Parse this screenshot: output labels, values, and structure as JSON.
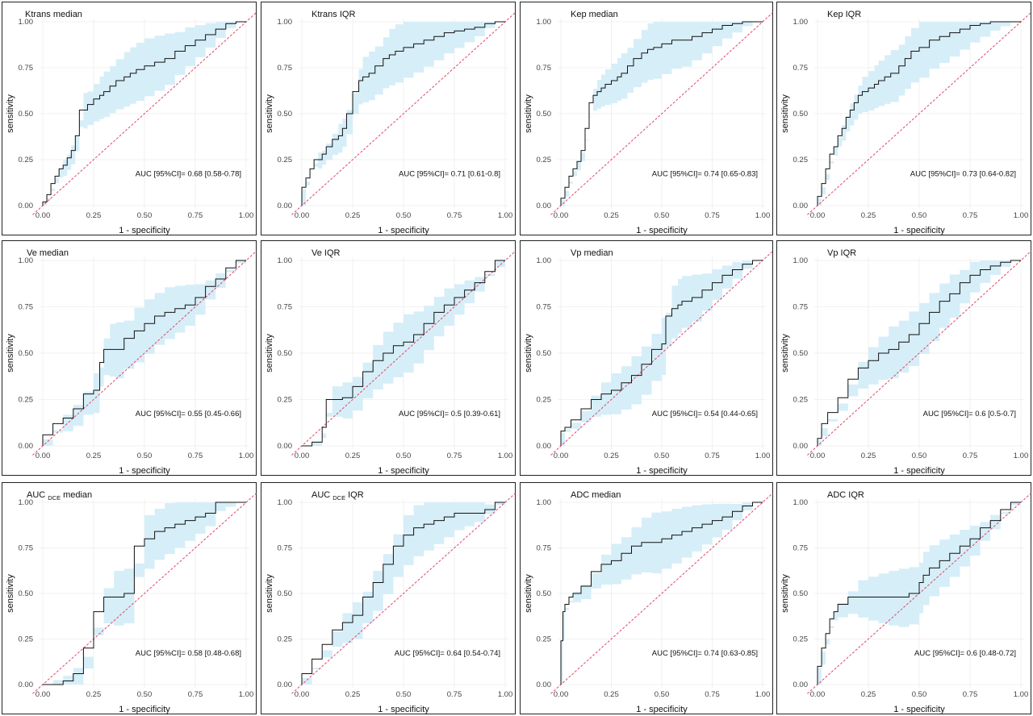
{
  "colors": {
    "ci_band": "#d6eef8",
    "roc_line": "#111111",
    "diagonal": "#e2466a",
    "grid": "#ececec"
  },
  "chart_data": [
    {
      "type": "line",
      "title": "Ktrans median",
      "title_sub": "",
      "xlabel": "1 - specificity",
      "ylabel": "sensitivity",
      "xlim": [
        0,
        1
      ],
      "ylim": [
        0,
        1
      ],
      "xticks": [
        "0.00",
        "0.25",
        "0.50",
        "0.75",
        "1.00"
      ],
      "yticks": [
        "0.00",
        "0.25",
        "0.50",
        "0.75",
        "1.00"
      ],
      "annotation": "AUC [95%CI]= 0.68 [0.58-0.78]",
      "x": [
        0,
        0.02,
        0.04,
        0.06,
        0.08,
        0.1,
        0.12,
        0.14,
        0.16,
        0.18,
        0.2,
        0.22,
        0.25,
        0.28,
        0.3,
        0.33,
        0.36,
        0.4,
        0.43,
        0.46,
        0.5,
        0.55,
        0.6,
        0.65,
        0.7,
        0.75,
        0.8,
        0.85,
        0.9,
        0.95,
        1
      ],
      "y": [
        0,
        0.02,
        0.06,
        0.12,
        0.16,
        0.2,
        0.22,
        0.26,
        0.3,
        0.38,
        0.52,
        0.52,
        0.55,
        0.58,
        0.6,
        0.62,
        0.65,
        0.68,
        0.7,
        0.72,
        0.74,
        0.76,
        0.78,
        0.8,
        0.84,
        0.87,
        0.9,
        0.93,
        0.96,
        0.99,
        1
      ]
    },
    {
      "type": "line",
      "title": "Ktrans IQR",
      "title_sub": "",
      "xlabel": "1 - specificity",
      "ylabel": "sensitivity",
      "xlim": [
        0,
        1
      ],
      "ylim": [
        0,
        1
      ],
      "xticks": [
        "0.00",
        "0.25",
        "0.50",
        "0.75",
        "1.00"
      ],
      "yticks": [
        "0.00",
        "0.25",
        "0.50",
        "0.75",
        "1.00"
      ],
      "annotation": "AUC [95%CI]= 0.71 [0.61-0.8]",
      "x": [
        0,
        0.02,
        0.04,
        0.06,
        0.08,
        0.1,
        0.12,
        0.15,
        0.18,
        0.2,
        0.22,
        0.25,
        0.28,
        0.3,
        0.33,
        0.36,
        0.4,
        0.43,
        0.46,
        0.5,
        0.55,
        0.6,
        0.65,
        0.7,
        0.75,
        0.8,
        0.85,
        0.9,
        0.95,
        1
      ],
      "y": [
        0,
        0.1,
        0.15,
        0.2,
        0.25,
        0.25,
        0.28,
        0.32,
        0.36,
        0.38,
        0.42,
        0.5,
        0.62,
        0.68,
        0.7,
        0.72,
        0.76,
        0.8,
        0.82,
        0.84,
        0.86,
        0.88,
        0.9,
        0.92,
        0.94,
        0.95,
        0.96,
        0.97,
        0.99,
        1
      ]
    },
    {
      "type": "line",
      "title": "Kep median",
      "title_sub": "",
      "xlabel": "1 - specificity",
      "ylabel": "sensitivity",
      "xlim": [
        0,
        1
      ],
      "ylim": [
        0,
        1
      ],
      "xticks": [
        "0.00",
        "0.25",
        "0.50",
        "0.75",
        "1.00"
      ],
      "yticks": [
        "0.00",
        "0.25",
        "0.50",
        "0.75",
        "1.00"
      ],
      "annotation": "AUC [95%CI]= 0.74 [0.65-0.83]",
      "x": [
        0,
        0.02,
        0.04,
        0.06,
        0.08,
        0.1,
        0.12,
        0.14,
        0.16,
        0.18,
        0.2,
        0.22,
        0.25,
        0.28,
        0.3,
        0.33,
        0.36,
        0.4,
        0.43,
        0.46,
        0.5,
        0.55,
        0.6,
        0.65,
        0.7,
        0.75,
        0.8,
        0.85,
        0.9,
        0.95,
        1
      ],
      "y": [
        0,
        0.04,
        0.1,
        0.16,
        0.2,
        0.24,
        0.3,
        0.42,
        0.56,
        0.6,
        0.62,
        0.64,
        0.66,
        0.68,
        0.7,
        0.72,
        0.76,
        0.8,
        0.83,
        0.85,
        0.86,
        0.88,
        0.9,
        0.9,
        0.92,
        0.94,
        0.96,
        0.98,
        0.99,
        1,
        1
      ]
    },
    {
      "type": "line",
      "title": "Kep IQR",
      "title_sub": "",
      "xlabel": "1 - specificity",
      "ylabel": "sensitivity",
      "xlim": [
        0,
        1
      ],
      "ylim": [
        0,
        1
      ],
      "xticks": [
        "0.00",
        "0.25",
        "0.50",
        "0.75",
        "1.00"
      ],
      "yticks": [
        "0.00",
        "0.25",
        "0.50",
        "0.75",
        "1.00"
      ],
      "annotation": "AUC [95%CI]= 0.73 [0.64-0.82]",
      "x": [
        0,
        0.02,
        0.04,
        0.06,
        0.08,
        0.1,
        0.12,
        0.14,
        0.16,
        0.18,
        0.2,
        0.22,
        0.25,
        0.28,
        0.3,
        0.33,
        0.36,
        0.4,
        0.43,
        0.46,
        0.5,
        0.55,
        0.6,
        0.65,
        0.7,
        0.75,
        0.8,
        0.85,
        0.9,
        0.95,
        1
      ],
      "y": [
        0,
        0.05,
        0.12,
        0.2,
        0.28,
        0.32,
        0.38,
        0.42,
        0.48,
        0.52,
        0.56,
        0.6,
        0.62,
        0.64,
        0.66,
        0.68,
        0.7,
        0.72,
        0.76,
        0.8,
        0.84,
        0.86,
        0.9,
        0.92,
        0.94,
        0.96,
        0.98,
        0.99,
        1,
        1,
        1
      ]
    },
    {
      "type": "line",
      "title": "Ve median",
      "title_sub": "",
      "xlabel": "1 - specificity",
      "ylabel": "sensitivity",
      "xlim": [
        0,
        1
      ],
      "ylim": [
        0,
        1
      ],
      "xticks": [
        "0.00",
        "0.25",
        "0.50",
        "0.75",
        "1.00"
      ],
      "yticks": [
        "0.00",
        "0.25",
        "0.50",
        "0.75",
        "1.00"
      ],
      "annotation": "AUC [95%CI]= 0.55 [0.45-0.66]",
      "x": [
        0,
        0.05,
        0.1,
        0.15,
        0.2,
        0.25,
        0.28,
        0.3,
        0.33,
        0.36,
        0.4,
        0.45,
        0.5,
        0.55,
        0.6,
        0.65,
        0.7,
        0.75,
        0.8,
        0.85,
        0.9,
        0.95,
        1
      ],
      "y": [
        0,
        0.06,
        0.12,
        0.15,
        0.2,
        0.28,
        0.3,
        0.45,
        0.52,
        0.52,
        0.52,
        0.58,
        0.62,
        0.66,
        0.7,
        0.72,
        0.74,
        0.76,
        0.8,
        0.86,
        0.9,
        0.96,
        1
      ]
    },
    {
      "type": "line",
      "title": "Ve IQR",
      "title_sub": "",
      "xlabel": "1 - specificity",
      "ylabel": "sensitivity",
      "xlim": [
        0,
        1
      ],
      "ylim": [
        0,
        1
      ],
      "xticks": [
        "0.00",
        "0.25",
        "0.50",
        "0.75",
        "1.00"
      ],
      "yticks": [
        "0.00",
        "0.25",
        "0.50",
        "0.75",
        "1.00"
      ],
      "annotation": "AUC [95%CI]= 0.5 [0.39-0.61]",
      "x": [
        0,
        0.05,
        0.1,
        0.12,
        0.15,
        0.2,
        0.25,
        0.3,
        0.35,
        0.4,
        0.45,
        0.5,
        0.55,
        0.6,
        0.65,
        0.7,
        0.75,
        0.8,
        0.85,
        0.9,
        0.95,
        1
      ],
      "y": [
        0,
        0,
        0.02,
        0.1,
        0.25,
        0.25,
        0.26,
        0.32,
        0.4,
        0.46,
        0.5,
        0.54,
        0.56,
        0.6,
        0.66,
        0.72,
        0.76,
        0.8,
        0.84,
        0.88,
        0.94,
        1
      ]
    },
    {
      "type": "line",
      "title": "Vp median",
      "title_sub": "",
      "xlabel": "1 - specificity",
      "ylabel": "sensitivity",
      "xlim": [
        0,
        1
      ],
      "ylim": [
        0,
        1
      ],
      "xticks": [
        "0.00",
        "0.25",
        "0.50",
        "0.75",
        "1.00"
      ],
      "yticks": [
        "0.00",
        "0.25",
        "0.50",
        "0.75",
        "1.00"
      ],
      "annotation": "AUC [95%CI]= 0.54 [0.44-0.65]",
      "x": [
        0,
        0.02,
        0.05,
        0.1,
        0.15,
        0.2,
        0.25,
        0.3,
        0.35,
        0.4,
        0.45,
        0.5,
        0.52,
        0.55,
        0.58,
        0.6,
        0.65,
        0.7,
        0.75,
        0.8,
        0.85,
        0.9,
        0.95,
        1
      ],
      "y": [
        0,
        0.08,
        0.1,
        0.14,
        0.2,
        0.25,
        0.28,
        0.3,
        0.34,
        0.38,
        0.44,
        0.52,
        0.55,
        0.7,
        0.74,
        0.76,
        0.78,
        0.8,
        0.84,
        0.88,
        0.92,
        0.95,
        0.98,
        1
      ]
    },
    {
      "type": "line",
      "title": "Vp IQR",
      "title_sub": "",
      "xlabel": "1 - specificity",
      "ylabel": "sensitivity",
      "xlim": [
        0,
        1
      ],
      "ylim": [
        0,
        1
      ],
      "xticks": [
        "0.00",
        "0.25",
        "0.50",
        "0.75",
        "1.00"
      ],
      "yticks": [
        "0.00",
        "0.25",
        "0.50",
        "0.75",
        "1.00"
      ],
      "annotation": "AUC [95%CI]= 0.6 [0.5-0.7]",
      "x": [
        0,
        0.02,
        0.05,
        0.1,
        0.15,
        0.2,
        0.25,
        0.3,
        0.35,
        0.4,
        0.45,
        0.5,
        0.55,
        0.6,
        0.65,
        0.7,
        0.75,
        0.8,
        0.85,
        0.9,
        0.95,
        1
      ],
      "y": [
        0,
        0.04,
        0.12,
        0.18,
        0.26,
        0.36,
        0.42,
        0.46,
        0.5,
        0.52,
        0.56,
        0.6,
        0.66,
        0.72,
        0.78,
        0.82,
        0.88,
        0.92,
        0.95,
        0.97,
        0.99,
        1
      ]
    },
    {
      "type": "line",
      "title": "AUC",
      "title_sub": "DCE",
      "title_suffix": "median",
      "xlabel": "1 - specificity",
      "ylabel": "sensitivity",
      "xlim": [
        0,
        1
      ],
      "ylim": [
        0,
        1
      ],
      "xticks": [
        "0.00",
        "0.25",
        "0.50",
        "0.75",
        "1.00"
      ],
      "yticks": [
        "0.00",
        "0.25",
        "0.50",
        "0.75",
        "1.00"
      ],
      "annotation": "AUC [95%CI]= 0.58 [0.48-0.68]",
      "x": [
        0,
        0.05,
        0.1,
        0.15,
        0.2,
        0.25,
        0.3,
        0.35,
        0.4,
        0.45,
        0.5,
        0.55,
        0.6,
        0.65,
        0.7,
        0.75,
        0.8,
        0.85,
        0.9,
        0.95,
        1
      ],
      "y": [
        0,
        0,
        0,
        0.02,
        0.06,
        0.2,
        0.4,
        0.48,
        0.48,
        0.5,
        0.76,
        0.8,
        0.84,
        0.86,
        0.88,
        0.9,
        0.92,
        0.94,
        1,
        1,
        1
      ]
    },
    {
      "type": "line",
      "title": "AUC",
      "title_sub": "DCE",
      "title_suffix": "IQR",
      "xlabel": "1 - specificity",
      "ylabel": "sensitivity",
      "xlim": [
        0,
        1
      ],
      "ylim": [
        0,
        1
      ],
      "xticks": [
        "0.00",
        "0.25",
        "0.50",
        "0.75",
        "1.00"
      ],
      "yticks": [
        "0.00",
        "0.25",
        "0.50",
        "0.75",
        "1.00"
      ],
      "annotation": "AUC [95%CI]= 0.64 [0.54-0.74]",
      "x": [
        0,
        0.05,
        0.1,
        0.15,
        0.2,
        0.25,
        0.3,
        0.35,
        0.4,
        0.45,
        0.5,
        0.55,
        0.6,
        0.65,
        0.7,
        0.75,
        0.8,
        0.85,
        0.9,
        0.95,
        1
      ],
      "y": [
        0,
        0.06,
        0.14,
        0.22,
        0.3,
        0.34,
        0.38,
        0.48,
        0.56,
        0.66,
        0.76,
        0.82,
        0.86,
        0.88,
        0.9,
        0.92,
        0.94,
        0.94,
        0.94,
        0.96,
        1
      ]
    },
    {
      "type": "line",
      "title": "ADC median",
      "title_sub": "",
      "xlabel": "1 - specificity",
      "ylabel": "sensitivity",
      "xlim": [
        0,
        1
      ],
      "ylim": [
        0,
        1
      ],
      "xticks": [
        "0.00",
        "0.25",
        "0.50",
        "0.75",
        "1.00"
      ],
      "yticks": [
        "0.00",
        "0.25",
        "0.50",
        "0.75",
        "1.00"
      ],
      "annotation": "AUC [95%CI]= 0.74 [0.63-0.85]",
      "x": [
        0,
        0.01,
        0.02,
        0.04,
        0.06,
        0.1,
        0.15,
        0.2,
        0.25,
        0.3,
        0.35,
        0.4,
        0.45,
        0.5,
        0.55,
        0.6,
        0.65,
        0.7,
        0.75,
        0.8,
        0.85,
        0.9,
        0.95,
        1
      ],
      "y": [
        0,
        0.24,
        0.4,
        0.44,
        0.48,
        0.5,
        0.54,
        0.62,
        0.66,
        0.68,
        0.72,
        0.76,
        0.78,
        0.78,
        0.8,
        0.82,
        0.84,
        0.86,
        0.88,
        0.9,
        0.92,
        0.95,
        0.98,
        1
      ]
    },
    {
      "type": "line",
      "title": "ADC IQR",
      "title_sub": "",
      "xlabel": "1 - specificity",
      "ylabel": "sensitivity",
      "xlim": [
        0,
        1
      ],
      "ylim": [
        0,
        1
      ],
      "xticks": [
        "0.00",
        "0.25",
        "0.50",
        "0.75",
        "1.00"
      ],
      "yticks": [
        "0.00",
        "0.25",
        "0.50",
        "0.75",
        "1.00"
      ],
      "annotation": "AUC [95%CI]= 0.6 [0.48-0.72]",
      "x": [
        0,
        0.02,
        0.04,
        0.06,
        0.08,
        0.1,
        0.15,
        0.2,
        0.25,
        0.3,
        0.35,
        0.4,
        0.45,
        0.5,
        0.52,
        0.55,
        0.6,
        0.65,
        0.7,
        0.75,
        0.8,
        0.85,
        0.9,
        0.95,
        1
      ],
      "y": [
        0,
        0.1,
        0.2,
        0.28,
        0.36,
        0.4,
        0.44,
        0.48,
        0.48,
        0.48,
        0.48,
        0.48,
        0.48,
        0.5,
        0.56,
        0.6,
        0.64,
        0.68,
        0.72,
        0.76,
        0.8,
        0.86,
        0.9,
        0.96,
        1
      ]
    }
  ]
}
